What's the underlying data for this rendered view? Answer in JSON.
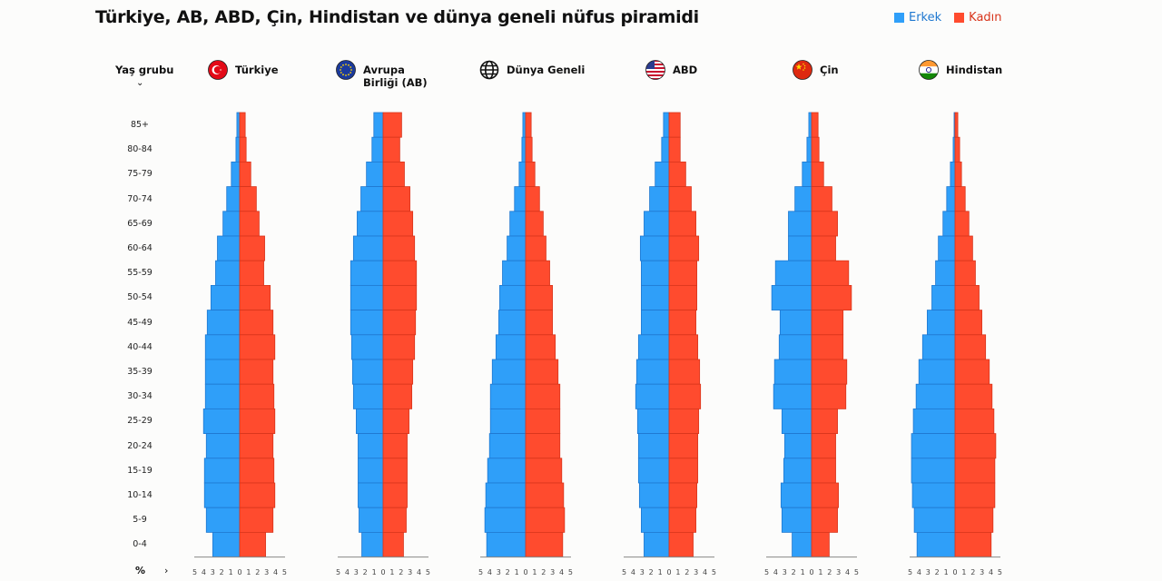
{
  "title": "Türkiye, AB, ABD, Çin, Hindistan ve dünya geneli nüfus piramidi",
  "legend": {
    "male": "Erkek",
    "female": "Kadın"
  },
  "colors": {
    "male": "#2f9ff9",
    "female": "#ff4b2e",
    "male_border": "#1f78d0",
    "female_border": "#d8351c",
    "axis": "#888888"
  },
  "age_header": "Yaş grubu",
  "age_header_icon": "chevron-down-icon",
  "unit_label": "%",
  "unit_icon": "chevron-right-icon",
  "chart_data": {
    "type": "bar",
    "orientation": "horizontal-population-pyramid",
    "categories": [
      "85+",
      "80-84",
      "75-79",
      "70-74",
      "65-69",
      "60-64",
      "55-59",
      "50-54",
      "45-49",
      "40-44",
      "35-39",
      "30-34",
      "25-29",
      "20-24",
      "15-19",
      "10-14",
      "5-9",
      "0-4"
    ],
    "xlim": [
      -5,
      5
    ],
    "x_tick_labels": [
      "5",
      "4",
      "3",
      "2",
      "1",
      "0",
      "1",
      "2",
      "3",
      "4",
      "5"
    ],
    "legend_position": "top-right",
    "grid": false,
    "panels": [
      {
        "name": "Türkiye",
        "icon": "turkey-flag-icon",
        "male": [
          0.3,
          0.4,
          0.9,
          1.4,
          1.8,
          2.4,
          2.6,
          3.1,
          3.5,
          3.7,
          3.7,
          3.7,
          3.9,
          3.6,
          3.8,
          3.8,
          3.6,
          2.9
        ],
        "female": [
          0.6,
          0.7,
          1.2,
          1.8,
          2.1,
          2.7,
          2.6,
          3.3,
          3.6,
          3.8,
          3.6,
          3.7,
          3.8,
          3.6,
          3.7,
          3.8,
          3.6,
          2.8
        ]
      },
      {
        "name": "Avrupa Birliği (AB)",
        "icon": "eu-flag-icon",
        "male": [
          1.0,
          1.2,
          1.8,
          2.4,
          2.8,
          3.2,
          3.5,
          3.5,
          3.5,
          3.4,
          3.3,
          3.2,
          2.9,
          2.7,
          2.7,
          2.7,
          2.6,
          2.3
        ],
        "female": [
          2.0,
          1.8,
          2.3,
          2.9,
          3.2,
          3.4,
          3.6,
          3.6,
          3.5,
          3.4,
          3.2,
          3.1,
          2.8,
          2.6,
          2.6,
          2.6,
          2.5,
          2.2
        ]
      },
      {
        "name": "Dünya Geneli",
        "icon": "globe-icon",
        "male": [
          0.3,
          0.4,
          0.7,
          1.2,
          1.7,
          2.0,
          2.5,
          2.8,
          2.9,
          3.2,
          3.6,
          3.8,
          3.8,
          3.9,
          4.1,
          4.3,
          4.4,
          4.2
        ],
        "female": [
          0.6,
          0.7,
          1.0,
          1.5,
          1.9,
          2.2,
          2.6,
          2.9,
          2.9,
          3.2,
          3.5,
          3.7,
          3.7,
          3.7,
          3.9,
          4.1,
          4.2,
          4.0
        ]
      },
      {
        "name": "ABD",
        "icon": "usa-flag-icon",
        "male": [
          0.6,
          0.8,
          1.5,
          2.1,
          2.7,
          3.1,
          3.0,
          3.0,
          3.0,
          3.3,
          3.5,
          3.6,
          3.4,
          3.3,
          3.3,
          3.2,
          3.0,
          2.7
        ],
        "female": [
          1.2,
          1.2,
          1.8,
          2.4,
          2.9,
          3.2,
          3.0,
          3.0,
          2.9,
          3.1,
          3.3,
          3.4,
          3.2,
          3.1,
          3.1,
          3.0,
          2.9,
          2.6
        ]
      },
      {
        "name": "Çin",
        "icon": "china-flag-icon",
        "male": [
          0.3,
          0.5,
          1.0,
          1.8,
          2.5,
          2.5,
          3.9,
          4.3,
          3.4,
          3.5,
          4.0,
          4.1,
          3.2,
          2.9,
          3.0,
          3.3,
          3.2,
          2.1
        ],
        "female": [
          0.7,
          0.8,
          1.3,
          2.2,
          2.8,
          2.6,
          4.0,
          4.3,
          3.4,
          3.4,
          3.8,
          3.7,
          2.8,
          2.6,
          2.6,
          2.9,
          2.8,
          1.9
        ]
      },
      {
        "name": "Hindistan",
        "icon": "india-flag-icon",
        "male": [
          0.1,
          0.2,
          0.5,
          0.9,
          1.3,
          1.8,
          2.1,
          2.5,
          3.0,
          3.5,
          3.9,
          4.2,
          4.5,
          4.7,
          4.7,
          4.6,
          4.4,
          4.1
        ],
        "female": [
          0.3,
          0.5,
          0.7,
          1.1,
          1.5,
          1.9,
          2.2,
          2.6,
          2.9,
          3.3,
          3.7,
          4.0,
          4.2,
          4.4,
          4.3,
          4.3,
          4.1,
          3.9
        ]
      }
    ]
  }
}
